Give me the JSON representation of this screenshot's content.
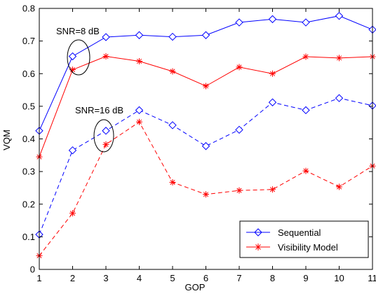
{
  "chart_data": {
    "type": "line",
    "xlabel": "GOP",
    "ylabel": "VQM",
    "xlim": [
      1,
      11
    ],
    "ylim": [
      0,
      0.8
    ],
    "x_ticks": [
      "1",
      "2",
      "3",
      "4",
      "5",
      "6",
      "7",
      "8",
      "9",
      "10",
      "11"
    ],
    "y_ticks": [
      "0",
      "0.1",
      "0.2",
      "0.3",
      "0.4",
      "0.5",
      "0.6",
      "0.7",
      "0.8"
    ],
    "x": [
      1,
      2,
      3,
      4,
      5,
      6,
      7,
      8,
      9,
      10,
      11
    ],
    "series": [
      {
        "name": "Sequential",
        "condition": "SNR=8 dB",
        "color": "#0000ff",
        "marker": "diamond",
        "linestyle": "solid",
        "values": [
          0.425,
          0.653,
          0.712,
          0.718,
          0.713,
          0.718,
          0.757,
          0.767,
          0.757,
          0.777,
          0.735
        ]
      },
      {
        "name": "Visibility Model",
        "condition": "SNR=8 dB",
        "color": "#ff0000",
        "marker": "star",
        "linestyle": "solid",
        "values": [
          0.345,
          0.612,
          0.653,
          0.638,
          0.607,
          0.562,
          0.62,
          0.6,
          0.652,
          0.648,
          0.652
        ]
      },
      {
        "name": "Sequential",
        "condition": "SNR=16 dB",
        "color": "#0000ff",
        "marker": "diamond",
        "linestyle": "dashed",
        "values": [
          0.107,
          0.365,
          0.425,
          0.488,
          0.442,
          0.378,
          0.428,
          0.512,
          0.488,
          0.525,
          0.502
        ]
      },
      {
        "name": "Visibility Model",
        "condition": "SNR=16 dB",
        "color": "#ff0000",
        "marker": "star",
        "linestyle": "dashed",
        "values": [
          0.042,
          0.172,
          0.383,
          0.452,
          0.267,
          0.23,
          0.242,
          0.245,
          0.302,
          0.253,
          0.317
        ]
      }
    ],
    "annotations": [
      {
        "text": "SNR=8 dB",
        "at_x": 2,
        "at_y": 0.63
      },
      {
        "text": "SNR=16 dB",
        "at_x": 3,
        "at_y": 0.405
      }
    ],
    "legend": {
      "position": "bottom-right",
      "entries": [
        "Sequential",
        "Visibility Model"
      ]
    },
    "grid": false
  }
}
